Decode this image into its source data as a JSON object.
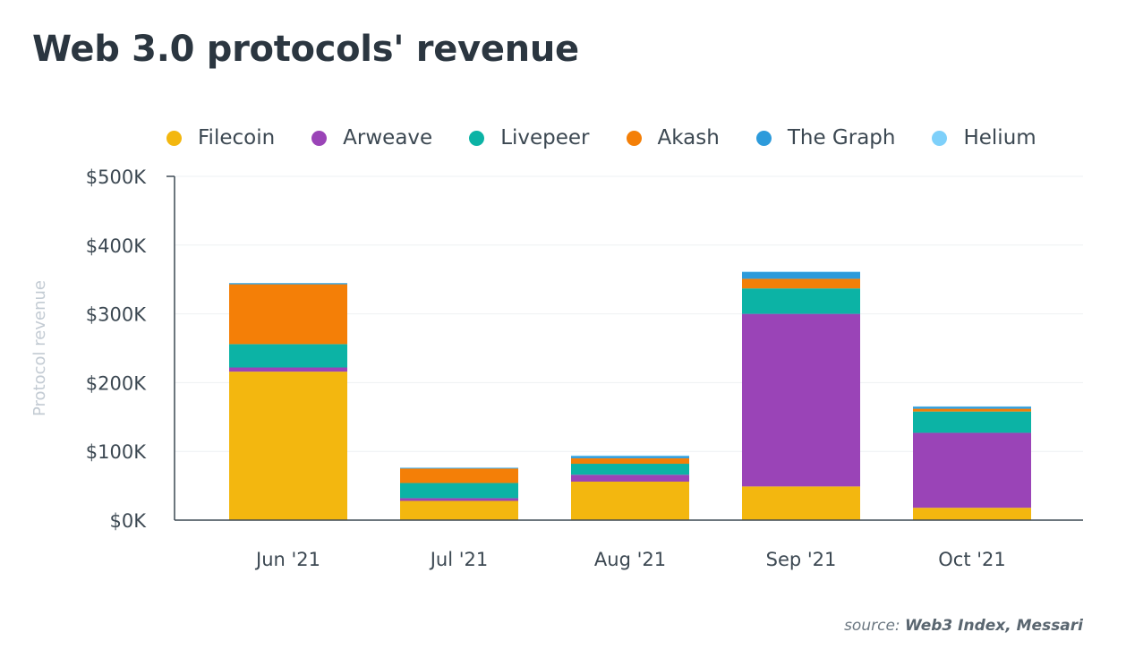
{
  "chart_data": {
    "type": "bar",
    "stacked": true,
    "title": "Web 3.0 protocols' revenue",
    "xlabel": "",
    "ylabel": "Protocol revenue",
    "ylim": [
      0,
      500000
    ],
    "yticks": [
      0,
      100000,
      200000,
      300000,
      400000,
      500000
    ],
    "ytick_labels": [
      "$0K",
      "$100K",
      "$200K",
      "$300K",
      "$400K",
      "$500K"
    ],
    "categories": [
      "Jun '21",
      "Jul '21",
      "Aug '21",
      "Sep '21",
      "Oct '21"
    ],
    "legend_position": "top",
    "grid": true,
    "series": [
      {
        "name": "Filecoin",
        "color": "#f3b70f",
        "values": [
          216000,
          28000,
          56000,
          49000,
          18000
        ]
      },
      {
        "name": "Arweave",
        "color": "#9a44b7",
        "values": [
          6000,
          4000,
          10000,
          251000,
          109000
        ]
      },
      {
        "name": "Livepeer",
        "color": "#0cb3a5",
        "values": [
          34000,
          22000,
          16000,
          37000,
          31000
        ]
      },
      {
        "name": "Akash",
        "color": "#f47f07",
        "values": [
          87000,
          21000,
          8000,
          14000,
          4000
        ]
      },
      {
        "name": "The Graph",
        "color": "#2d9bdb",
        "values": [
          1500,
          1000,
          3000,
          10000,
          3000
        ]
      },
      {
        "name": "Helium",
        "color": "#7ed0fa",
        "values": [
          500,
          500,
          1000,
          500,
          500
        ]
      }
    ]
  },
  "source": {
    "prefix": "source:",
    "name": "Web3 Index, Messari"
  }
}
